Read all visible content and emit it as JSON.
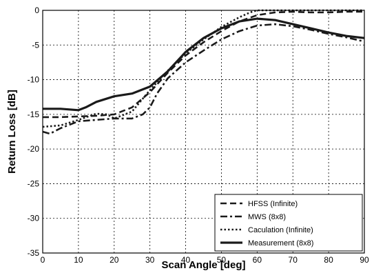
{
  "chart_data": {
    "type": "line",
    "title": "",
    "xlabel": "Scan Angle [deg]",
    "ylabel": "Return Loss [dB]",
    "xlim": [
      0,
      90
    ],
    "ylim": [
      -35,
      0
    ],
    "xticks": [
      0,
      10,
      20,
      30,
      40,
      50,
      60,
      70,
      80,
      90
    ],
    "yticks": [
      0,
      -5,
      -10,
      -15,
      -20,
      -25,
      -30,
      -35
    ],
    "grid": true,
    "legend_position": "bottom-right",
    "series": [
      {
        "name": "HFSS (Infinite)",
        "style": "dashed",
        "color": "#1a1a1a",
        "points": [
          [
            0,
            -15.4
          ],
          [
            5,
            -15.4
          ],
          [
            10,
            -15.3
          ],
          [
            15,
            -15.2
          ],
          [
            20,
            -15.0
          ],
          [
            25,
            -14.0
          ],
          [
            30,
            -11.8
          ],
          [
            35,
            -9.0
          ],
          [
            40,
            -6.5
          ],
          [
            45,
            -4.6
          ],
          [
            50,
            -3.0
          ],
          [
            55,
            -1.6
          ],
          [
            60,
            -0.7
          ],
          [
            65,
            -0.3
          ],
          [
            70,
            -0.2
          ],
          [
            75,
            -0.3
          ],
          [
            80,
            -0.3
          ],
          [
            85,
            -0.2
          ],
          [
            90,
            -0.2
          ]
        ]
      },
      {
        "name": "MWS (8x8)",
        "style": "dash-dot",
        "color": "#1a1a1a",
        "points": [
          [
            0,
            -17.5
          ],
          [
            2,
            -17.8
          ],
          [
            5,
            -17.0
          ],
          [
            10,
            -16.0
          ],
          [
            15,
            -15.8
          ],
          [
            20,
            -15.6
          ],
          [
            25,
            -15.6
          ],
          [
            28,
            -15.0
          ],
          [
            30,
            -14.0
          ],
          [
            32,
            -12.0
          ],
          [
            35,
            -9.8
          ],
          [
            40,
            -7.5
          ],
          [
            45,
            -5.8
          ],
          [
            50,
            -4.2
          ],
          [
            55,
            -3.0
          ],
          [
            60,
            -2.2
          ],
          [
            65,
            -2.0
          ],
          [
            70,
            -2.3
          ],
          [
            75,
            -2.8
          ],
          [
            80,
            -3.4
          ],
          [
            85,
            -3.9
          ],
          [
            90,
            -4.5
          ]
        ]
      },
      {
        "name": "Caculation (Infinite)",
        "style": "dotted",
        "color": "#1a1a1a",
        "points": [
          [
            0,
            -16.8
          ],
          [
            5,
            -16.6
          ],
          [
            10,
            -15.8
          ],
          [
            15,
            -14.9
          ],
          [
            18,
            -15.0
          ],
          [
            20,
            -15.6
          ],
          [
            25,
            -14.6
          ],
          [
            30,
            -11.5
          ],
          [
            35,
            -8.7
          ],
          [
            40,
            -6.2
          ],
          [
            45,
            -4.2
          ],
          [
            50,
            -2.4
          ],
          [
            55,
            -1.0
          ],
          [
            58,
            -0.3
          ],
          [
            60,
            0.0
          ],
          [
            65,
            0.0
          ],
          [
            70,
            0.0
          ],
          [
            80,
            0.0
          ],
          [
            90,
            0.0
          ]
        ]
      },
      {
        "name": "Measurement (8x8)",
        "style": "solid",
        "color": "#1a1a1a",
        "points": [
          [
            0,
            -14.2
          ],
          [
            5,
            -14.2
          ],
          [
            10,
            -14.4
          ],
          [
            12,
            -14.0
          ],
          [
            15,
            -13.2
          ],
          [
            20,
            -12.4
          ],
          [
            25,
            -12.0
          ],
          [
            30,
            -11.0
          ],
          [
            35,
            -8.8
          ],
          [
            40,
            -6.0
          ],
          [
            45,
            -4.0
          ],
          [
            50,
            -2.6
          ],
          [
            55,
            -1.6
          ],
          [
            60,
            -1.2
          ],
          [
            65,
            -1.4
          ],
          [
            70,
            -2.0
          ],
          [
            75,
            -2.6
          ],
          [
            80,
            -3.2
          ],
          [
            85,
            -3.7
          ],
          [
            90,
            -4.0
          ]
        ]
      }
    ]
  }
}
